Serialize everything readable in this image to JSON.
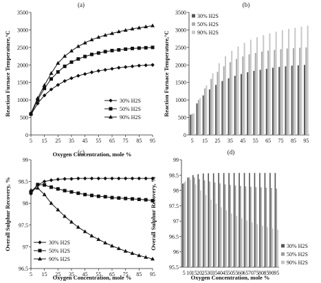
{
  "chart_data": [
    {
      "panel_label": "(a)",
      "type": "line",
      "xlabel": "Oxygen Concentration, mole %",
      "ylabel": "Reaction Furnace Temperature,°C",
      "xlim": [
        5,
        95
      ],
      "ylim": [
        0,
        3500
      ],
      "x_ticks": [
        5,
        15,
        25,
        35,
        45,
        55,
        65,
        75,
        85,
        95
      ],
      "y_ticks": [
        0,
        500,
        1000,
        1500,
        2000,
        2500,
        3000,
        3500
      ],
      "legend_position": "right",
      "x": [
        5,
        10,
        15,
        20,
        25,
        30,
        35,
        40,
        45,
        50,
        55,
        60,
        65,
        70,
        75,
        80,
        85,
        90,
        95
      ],
      "series": [
        {
          "name": "30% H2S",
          "marker": "diamond",
          "values": [
            580,
            900,
            1130,
            1300,
            1430,
            1540,
            1620,
            1690,
            1740,
            1790,
            1830,
            1860,
            1890,
            1920,
            1940,
            1960,
            1980,
            1990,
            2000
          ]
        },
        {
          "name": "50% H2S",
          "marker": "square",
          "values": [
            600,
            1000,
            1330,
            1600,
            1800,
            1960,
            2080,
            2170,
            2240,
            2300,
            2340,
            2380,
            2410,
            2430,
            2450,
            2470,
            2480,
            2490,
            2500
          ]
        },
        {
          "name": "90% H2S",
          "marker": "triangle",
          "values": [
            620,
            1050,
            1420,
            1760,
            2050,
            2250,
            2400,
            2530,
            2630,
            2720,
            2790,
            2850,
            2900,
            2950,
            2990,
            3030,
            3060,
            3090,
            3120
          ]
        }
      ]
    },
    {
      "panel_label": "(b)",
      "type": "bar",
      "ylabel": "Reaction Furnace Temperature,°C",
      "ylim": [
        0,
        3500
      ],
      "x_ticks": [
        5,
        15,
        25,
        35,
        45,
        55,
        65,
        75,
        85,
        95
      ],
      "y_ticks": [
        0,
        500,
        1000,
        1500,
        2000,
        2500,
        3000,
        3500
      ],
      "legend_position": "top-left",
      "categories": [
        5,
        10,
        15,
        20,
        25,
        30,
        35,
        40,
        45,
        50,
        55,
        60,
        65,
        70,
        75,
        80,
        85,
        90,
        95
      ],
      "series": [
        {
          "name": "30% H2S",
          "color": "#555555",
          "values": [
            580,
            900,
            1130,
            1300,
            1430,
            1540,
            1620,
            1690,
            1740,
            1790,
            1830,
            1860,
            1890,
            1920,
            1940,
            1960,
            1980,
            1990,
            2000
          ]
        },
        {
          "name": "50% H2S",
          "color": "#aaaaaa",
          "values": [
            600,
            1000,
            1330,
            1600,
            1800,
            1960,
            2080,
            2170,
            2240,
            2300,
            2340,
            2380,
            2410,
            2430,
            2450,
            2470,
            2480,
            2490,
            2500
          ]
        },
        {
          "name": "90% H2S",
          "color": "#c8c8c8",
          "values": [
            620,
            1050,
            1420,
            1760,
            2050,
            2250,
            2400,
            2530,
            2630,
            2720,
            2790,
            2850,
            2900,
            2950,
            2990,
            3030,
            3060,
            3090,
            3120
          ]
        }
      ]
    },
    {
      "panel_label": "(c)",
      "type": "line",
      "xlabel": "Oxygen Concentration, mole %",
      "ylabel": "Overall Sulphur Recovery, %",
      "xlim": [
        5,
        95
      ],
      "ylim": [
        96.5,
        99
      ],
      "x_ticks": [
        5,
        15,
        25,
        35,
        45,
        55,
        65,
        75,
        85,
        95
      ],
      "y_ticks": [
        "96.5",
        "97",
        "97.5",
        "98",
        "98.5",
        "99"
      ],
      "legend_position": "bottom-left",
      "x": [
        5,
        10,
        15,
        20,
        25,
        30,
        35,
        40,
        45,
        50,
        55,
        60,
        65,
        70,
        75,
        80,
        85,
        90,
        95
      ],
      "series": [
        {
          "name": "30% H2S",
          "marker": "diamond",
          "values": [
            98.22,
            98.42,
            98.5,
            98.53,
            98.55,
            98.56,
            98.56,
            98.57,
            98.57,
            98.57,
            98.57,
            98.57,
            98.57,
            98.57,
            98.57,
            98.57,
            98.57,
            98.57,
            98.57
          ]
        },
        {
          "name": "50% H2S",
          "marker": "square",
          "values": [
            98.25,
            98.43,
            98.42,
            98.37,
            98.33,
            98.29,
            98.26,
            98.23,
            98.2,
            98.18,
            98.16,
            98.15,
            98.13,
            98.12,
            98.11,
            98.1,
            98.09,
            98.08,
            98.06
          ]
        },
        {
          "name": "90% H2S",
          "marker": "triangle",
          "values": [
            98.3,
            98.35,
            98.2,
            98.0,
            97.85,
            97.7,
            97.57,
            97.45,
            97.35,
            97.25,
            97.17,
            97.09,
            97.02,
            96.96,
            96.9,
            96.85,
            96.8,
            96.76,
            96.72
          ]
        }
      ]
    },
    {
      "panel_label": "(d)",
      "type": "bar",
      "xlabel": "Oxygen Concentration, mole %",
      "ylabel": "Overall Sulphur Recovery, %",
      "ylim": [
        95.5,
        99
      ],
      "x_ticks": [
        5,
        10,
        15,
        20,
        25,
        30,
        35,
        40,
        45,
        50,
        55,
        60,
        65,
        70,
        75,
        80,
        85,
        90,
        95
      ],
      "y_ticks": [
        "95.5",
        "96",
        "96.5",
        "97",
        "97.5",
        "98",
        "98.5",
        "99"
      ],
      "legend_position": "bottom-right",
      "categories": [
        5,
        10,
        15,
        20,
        25,
        30,
        35,
        40,
        45,
        50,
        55,
        60,
        65,
        70,
        75,
        80,
        85,
        90,
        95
      ],
      "series": [
        {
          "name": "30% H2S",
          "color": "#555555",
          "values": [
            98.22,
            98.42,
            98.5,
            98.53,
            98.55,
            98.56,
            98.56,
            98.57,
            98.57,
            98.57,
            98.57,
            98.57,
            98.57,
            98.57,
            98.57,
            98.57,
            98.57,
            98.57,
            98.57
          ]
        },
        {
          "name": "50% H2S",
          "color": "#9a9a9a",
          "values": [
            98.25,
            98.43,
            98.42,
            98.37,
            98.33,
            98.29,
            98.26,
            98.23,
            98.2,
            98.18,
            98.16,
            98.15,
            98.13,
            98.12,
            98.11,
            98.1,
            98.09,
            98.08,
            98.06
          ]
        },
        {
          "name": "90% H2S",
          "color": "#c4c4c4",
          "values": [
            98.3,
            98.35,
            98.2,
            98.0,
            97.85,
            97.7,
            97.57,
            97.45,
            97.35,
            97.25,
            97.17,
            97.09,
            97.02,
            96.96,
            96.9,
            96.85,
            96.8,
            96.76,
            96.72
          ]
        }
      ]
    }
  ]
}
